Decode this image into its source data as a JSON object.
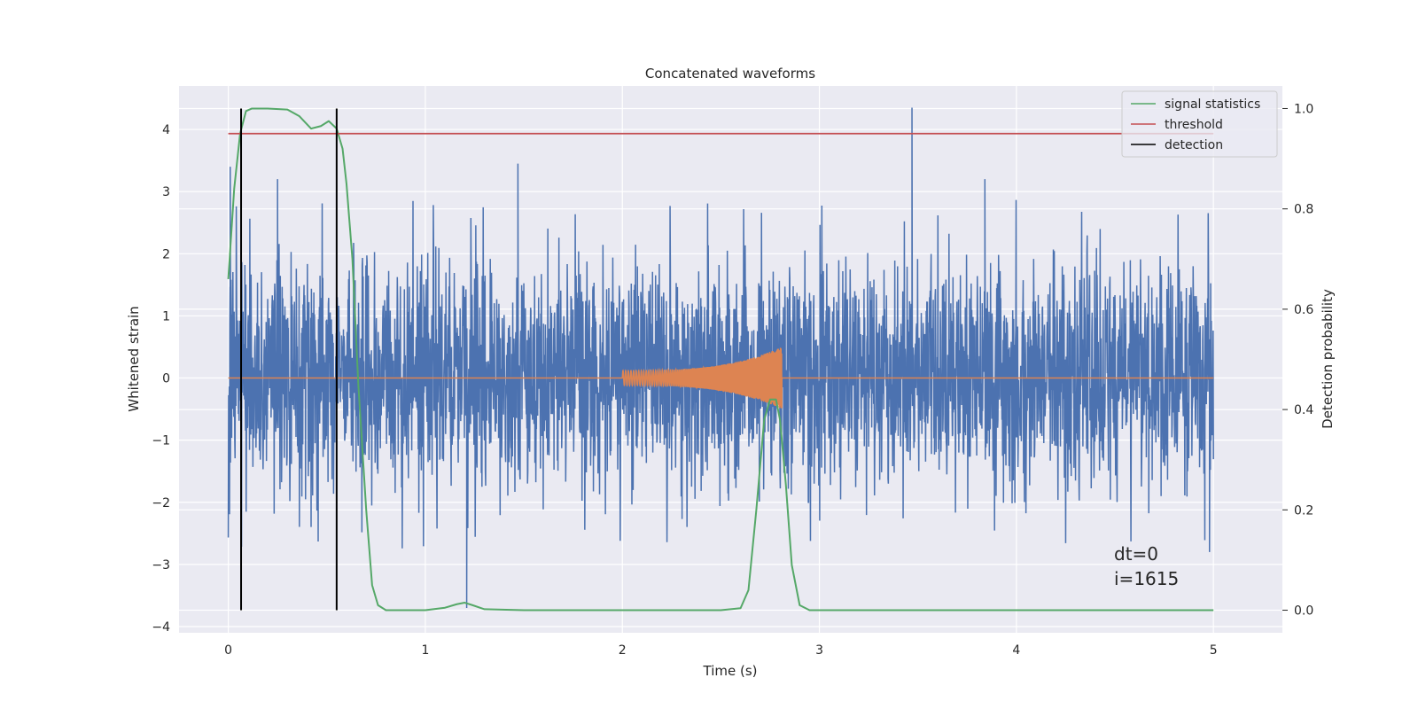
{
  "chart_data": {
    "type": "line",
    "title": "Concatenated waveforms",
    "xlabel": "Time (s)",
    "ylabel": "Whitened strain",
    "y2label": "Detection probability",
    "xlim": [
      -0.25,
      5.35
    ],
    "ylim": [
      -4.1,
      4.7
    ],
    "y2lim": [
      -0.045,
      1.045
    ],
    "xticks": [
      0,
      1,
      2,
      3,
      4,
      5
    ],
    "yticks": [
      -4,
      -3,
      -2,
      -1,
      0,
      1,
      2,
      3,
      4
    ],
    "y2ticks": [
      0.0,
      0.2,
      0.4,
      0.6,
      0.8,
      1.0
    ],
    "xtick_labels": [
      "0",
      "1",
      "2",
      "3",
      "4",
      "5"
    ],
    "ytick_labels": [
      "−4",
      "−3",
      "−2",
      "−1",
      "0",
      "1",
      "2",
      "3",
      "4"
    ],
    "y2tick_labels": [
      "0.0",
      "0.2",
      "0.4",
      "0.6",
      "0.8",
      "1.0"
    ],
    "grid": true,
    "legend": "top-right",
    "series": [
      {
        "name": "",
        "kind": "whitened_strain_noise",
        "color": "#4c72b0",
        "axis": "left",
        "x_range": [
          0,
          5
        ],
        "envelope": [
          -2.6,
          2.7
        ],
        "notable_spikes": [
          [
            0.01,
            3.4
          ],
          [
            0.25,
            3.2
          ],
          [
            1.21,
            -3.7
          ],
          [
            1.47,
            3.45
          ],
          [
            3.47,
            4.35
          ],
          [
            3.84,
            3.2
          ],
          [
            4.98,
            -2.8
          ]
        ]
      },
      {
        "name": "",
        "kind": "injected_chirp",
        "color": "#dd8452",
        "axis": "left",
        "x_range": [
          0,
          5
        ],
        "chirp_start": 2.0,
        "chirp_end": 2.81,
        "amplitude_start": 0.12,
        "amplitude_end": 0.5
      },
      {
        "name": "signal statistics",
        "color": "#55a868",
        "axis": "right",
        "x": [
          0,
          0.03,
          0.06,
          0.09,
          0.12,
          0.2,
          0.3,
          0.36,
          0.42,
          0.47,
          0.51,
          0.55,
          0.58,
          0.6,
          0.63,
          0.66,
          0.7,
          0.73,
          0.76,
          0.8,
          1.0,
          1.1,
          1.16,
          1.2,
          1.24,
          1.3,
          1.5,
          2.0,
          2.5,
          2.6,
          2.64,
          2.68,
          2.72,
          2.75,
          2.78,
          2.8,
          2.83,
          2.86,
          2.9,
          2.95,
          3.2,
          4.0,
          5.0
        ],
        "values": [
          0.66,
          0.84,
          0.95,
          0.995,
          1.0,
          1.0,
          0.998,
          0.985,
          0.96,
          0.965,
          0.975,
          0.96,
          0.92,
          0.85,
          0.7,
          0.45,
          0.2,
          0.05,
          0.01,
          0.0,
          0.0,
          0.005,
          0.012,
          0.015,
          0.01,
          0.002,
          0.0,
          0.0,
          0.0,
          0.004,
          0.04,
          0.2,
          0.38,
          0.42,
          0.42,
          0.38,
          0.25,
          0.09,
          0.01,
          0.0,
          0.0,
          0.0,
          0.0
        ]
      },
      {
        "name": "threshold",
        "color": "#c44e52",
        "axis": "right",
        "x": [
          0,
          5
        ],
        "values": [
          0.95,
          0.95
        ]
      },
      {
        "name": "detection",
        "color": "#000000",
        "axis": "right",
        "x": [
          0.065,
          0.55
        ],
        "span": [
          0.0,
          1.0
        ]
      }
    ],
    "annotations": [
      {
        "text": "dt=0"
      },
      {
        "text": "i=1615"
      }
    ]
  }
}
